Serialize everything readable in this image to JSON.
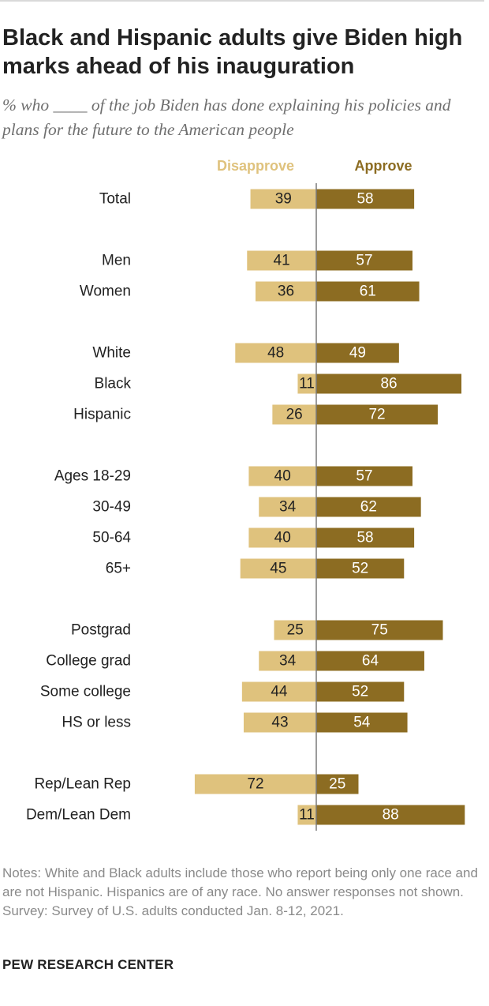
{
  "title": "Black and Hispanic adults give Biden high marks ahead of his inauguration",
  "subtitle": "% who ____ of the job Biden has done explaining his policies and plans for the future to the American people",
  "colors": {
    "disapprove": "#dfc27d",
    "approve": "#8c6c22",
    "text": "#222222",
    "muted": "#8a8a8a",
    "axis": "#7a7a7a"
  },
  "chart_data": {
    "type": "bar",
    "orientation": "horizontal-diverging",
    "title": "Black and Hispanic adults give Biden high marks ahead of his inauguration",
    "legend_position": "top",
    "series": [
      {
        "name": "Disapprove",
        "direction": "left"
      },
      {
        "name": "Approve",
        "direction": "right"
      }
    ],
    "groups": [
      {
        "rows": [
          {
            "label": "Total",
            "disapprove": 39,
            "approve": 58
          }
        ]
      },
      {
        "rows": [
          {
            "label": "Men",
            "disapprove": 41,
            "approve": 57
          },
          {
            "label": "Women",
            "disapprove": 36,
            "approve": 61
          }
        ]
      },
      {
        "rows": [
          {
            "label": "White",
            "disapprove": 48,
            "approve": 49
          },
          {
            "label": "Black",
            "disapprove": 11,
            "approve": 86
          },
          {
            "label": "Hispanic",
            "disapprove": 26,
            "approve": 72
          }
        ]
      },
      {
        "rows": [
          {
            "label": "Ages 18-29",
            "disapprove": 40,
            "approve": 57
          },
          {
            "label": "30-49",
            "disapprove": 34,
            "approve": 62
          },
          {
            "label": "50-64",
            "disapprove": 40,
            "approve": 58
          },
          {
            "label": "65+",
            "disapprove": 45,
            "approve": 52
          }
        ]
      },
      {
        "rows": [
          {
            "label": "Postgrad",
            "disapprove": 25,
            "approve": 75
          },
          {
            "label": "College grad",
            "disapprove": 34,
            "approve": 64
          },
          {
            "label": "Some college",
            "disapprove": 44,
            "approve": 52
          },
          {
            "label": "HS or less",
            "disapprove": 43,
            "approve": 54
          }
        ]
      },
      {
        "rows": [
          {
            "label": "Rep/Lean Rep",
            "disapprove": 72,
            "approve": 25
          },
          {
            "label": "Dem/Lean Dem",
            "disapprove": 11,
            "approve": 88
          }
        ]
      }
    ],
    "xlim": [
      0,
      100
    ]
  },
  "notes": {
    "line1": "Notes: White and Black adults include those who report being only one race and are not Hispanic. Hispanics are of any race. No answer responses not shown.",
    "survey": "Survey: Survey of U.S. adults conducted Jan. 8-12, 2021."
  },
  "source": "PEW RESEARCH CENTER"
}
